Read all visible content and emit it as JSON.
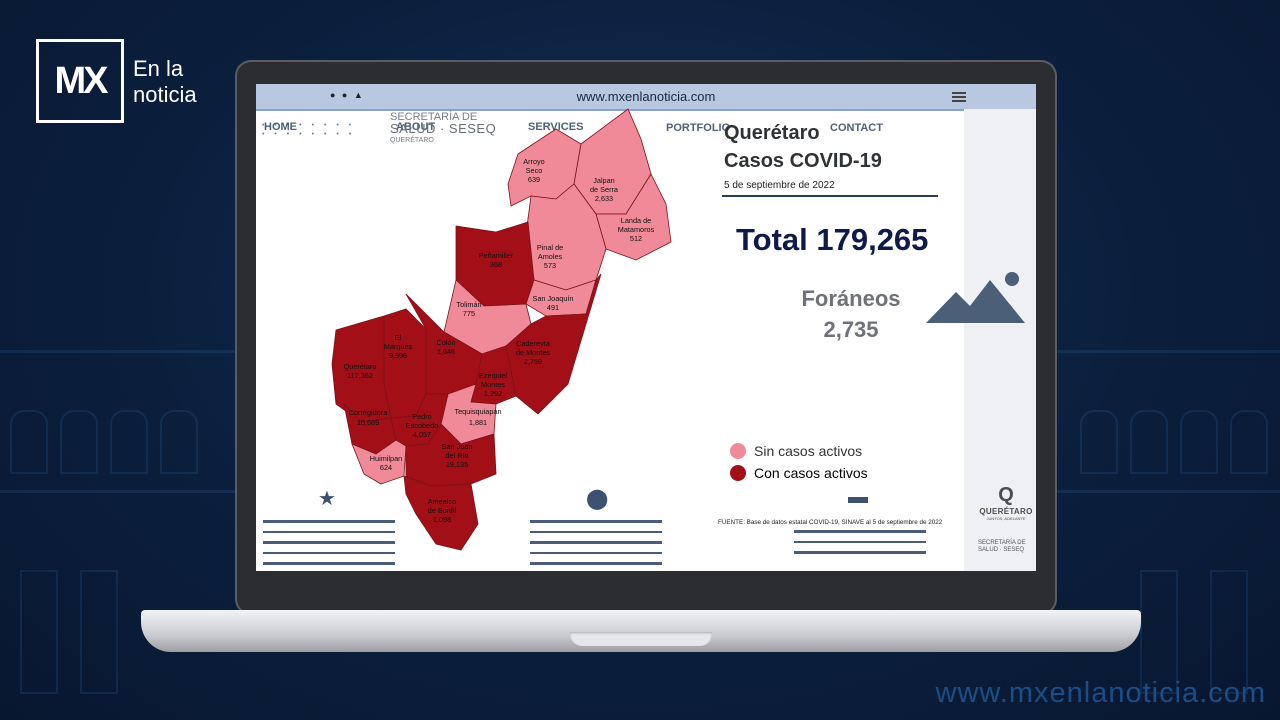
{
  "brand": {
    "logo_letters": "MX",
    "logo_text_line1": "En la",
    "logo_text_line2": "noticia"
  },
  "footer_url": "www.mxenlanoticia.com",
  "browser": {
    "url": "www.mxenlanoticia.com"
  },
  "nav": {
    "home": "HOME",
    "about": "ABOUT",
    "services": "SERVICES",
    "portfolio": "PORTFOLIO",
    "contact": "CONTACT"
  },
  "seseq_logo": {
    "line1": "SECRETARÍA DE",
    "line2": "SALUD · SESEQ",
    "line3": "QUERÉTARO"
  },
  "report": {
    "title_line1": "Querétaro",
    "title_line2": "Casos COVID-19",
    "date": "5 de septiembre de 2022",
    "total": "Total 179,265",
    "foraneos_label": "Foráneos",
    "foraneos_value": "2,735",
    "source": "FUENTE: Base de datos estatal COVID-19, SINAVE  al 5 de septiembre de 2022"
  },
  "legend": [
    {
      "label": "Sin casos activos",
      "color": "#f08a98"
    },
    {
      "label": "Con casos activos",
      "color": "#a30f17"
    }
  ],
  "municipalities": [
    {
      "name": "Arroyo Seco",
      "cases": "639",
      "status": "sin"
    },
    {
      "name": "Jalpan de Serra",
      "cases": "2,633",
      "status": "sin"
    },
    {
      "name": "Landa de Matamoros",
      "cases": "512",
      "status": "sin"
    },
    {
      "name": "Pinal de Amoles",
      "cases": "573",
      "status": "sin"
    },
    {
      "name": "Peñamiller",
      "cases": "368",
      "status": "con"
    },
    {
      "name": "San Joaquín",
      "cases": "491",
      "status": "sin"
    },
    {
      "name": "Tolimán",
      "cases": "775",
      "status": "sin"
    },
    {
      "name": "Cadereyta de Montes",
      "cases": "2,759",
      "status": "con"
    },
    {
      "name": "El Marqués",
      "cases": "9,996",
      "status": "con"
    },
    {
      "name": "Colón",
      "cases": "1,646",
      "status": "con"
    },
    {
      "name": "Querétaro",
      "cases": "117,362",
      "status": "con"
    },
    {
      "name": "Ezequiel Montes",
      "cases": "1,292",
      "status": "con"
    },
    {
      "name": "Tequisquiapan",
      "cases": "1,881",
      "status": "sin"
    },
    {
      "name": "Corregidora",
      "cases": "10,689",
      "status": "con"
    },
    {
      "name": "Pedro Escobedo",
      "cases": "4,057",
      "status": "con"
    },
    {
      "name": "Huimilpan",
      "cases": "624",
      "status": "sin"
    },
    {
      "name": "San Juan del Río",
      "cases": "19,135",
      "status": "con"
    },
    {
      "name": "Amealco de Bonfil",
      "cases": "1,098",
      "status": "con"
    }
  ],
  "side_logo": {
    "mark": "Q",
    "name": "QUERÉTARO",
    "sub": "JUNTOS, ADELANTE",
    "sec": "SECRETARÍA DE SALUD · SESEQ"
  },
  "icons": {
    "star": "star-icon",
    "pin": "map-pin-icon",
    "card": "card-icon",
    "mountain": "mountain-image-icon"
  }
}
